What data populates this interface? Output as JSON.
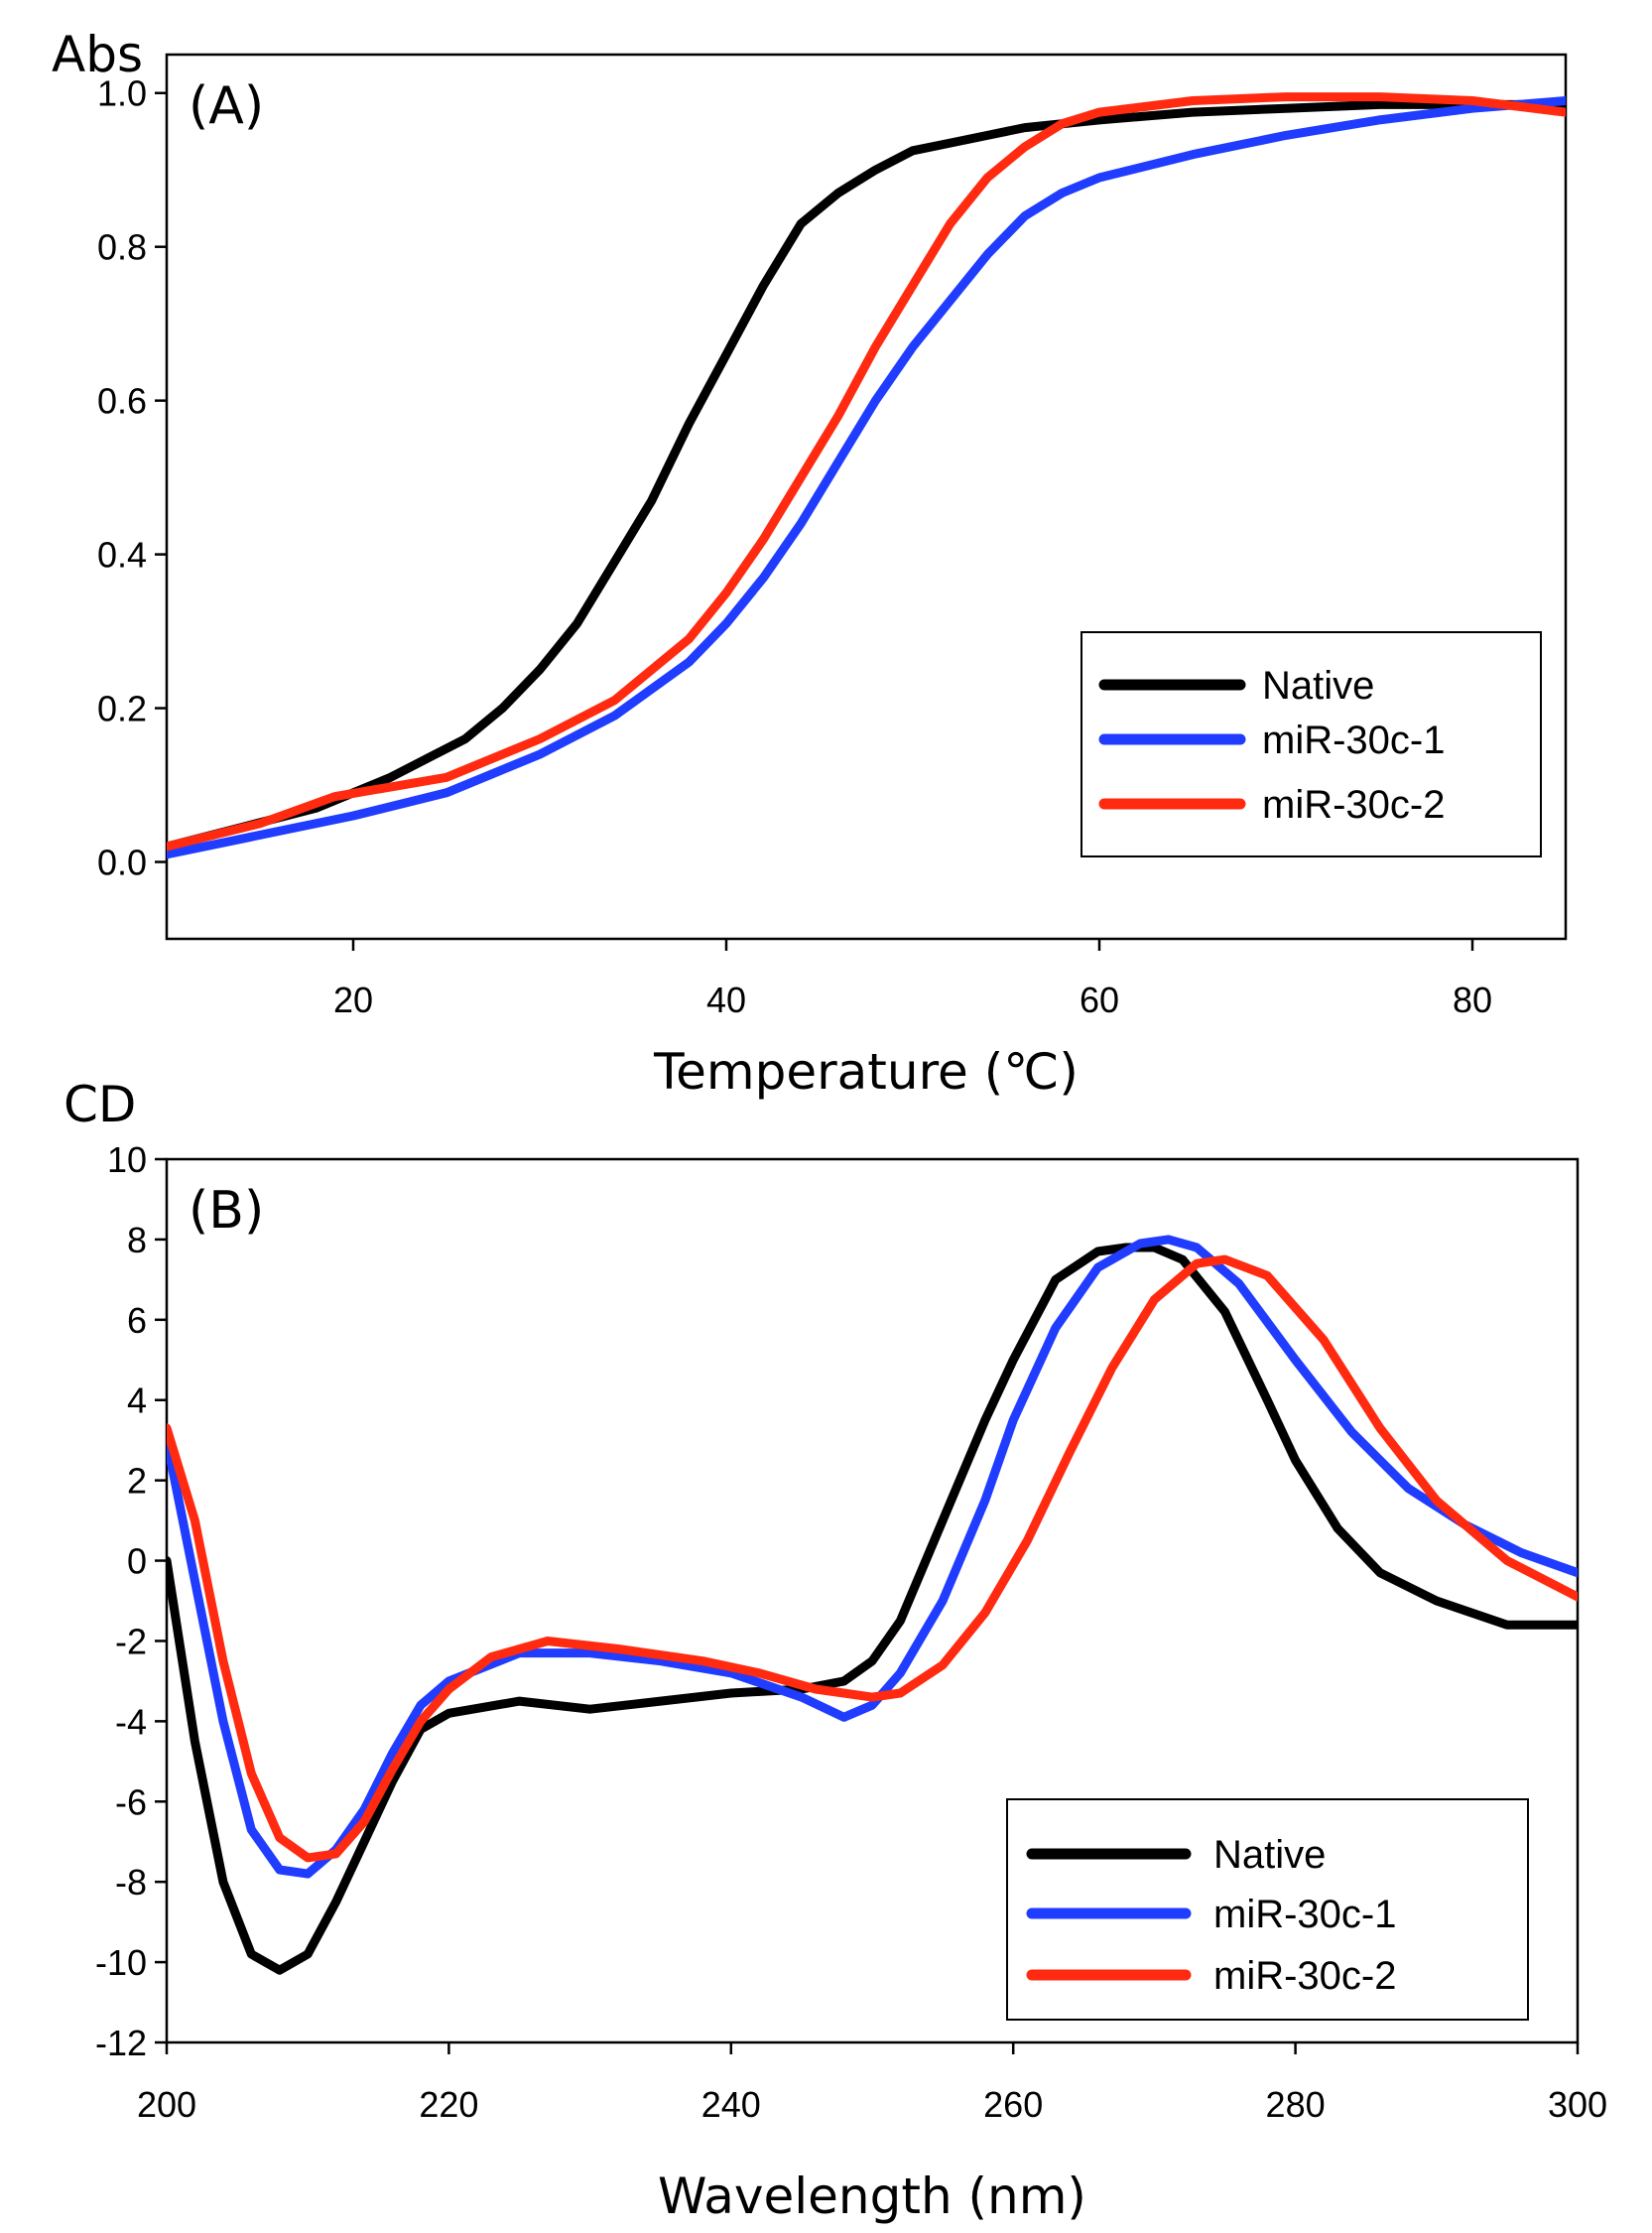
{
  "chart_data": [
    {
      "type": "line",
      "panel_label": "(A)",
      "xlabel": "Temperature (℃)",
      "ylabel": "Abs",
      "xlim": [
        10,
        85
      ],
      "ylim": [
        -0.1,
        1.05
      ],
      "xticks": [
        20,
        40,
        60,
        80
      ],
      "xtick_labels": [
        "20",
        "40",
        "60",
        "80"
      ],
      "yticks": [
        0.0,
        0.2,
        0.4,
        0.6,
        0.8,
        1.0
      ],
      "ytick_labels": [
        "0.0",
        "0.2",
        "0.4",
        "0.6",
        "0.8",
        "1.0"
      ],
      "grid": false,
      "legend_position": "bottom-right",
      "series": [
        {
          "name": "Native",
          "color": "#000000",
          "x": [
            10,
            14,
            18,
            20,
            22,
            24,
            26,
            28,
            30,
            32,
            34,
            36,
            38,
            40,
            42,
            44,
            46,
            48,
            50,
            52,
            54,
            56,
            60,
            65,
            70,
            75,
            80,
            85
          ],
          "y": [
            0.02,
            0.045,
            0.07,
            0.09,
            0.11,
            0.135,
            0.16,
            0.2,
            0.25,
            0.31,
            0.39,
            0.47,
            0.57,
            0.66,
            0.75,
            0.83,
            0.87,
            0.9,
            0.925,
            0.935,
            0.945,
            0.955,
            0.965,
            0.975,
            0.98,
            0.985,
            0.985,
            0.985
          ]
        },
        {
          "name": "miR-30c-1",
          "color": "#1f3cff",
          "x": [
            10,
            15,
            20,
            25,
            30,
            34,
            38,
            40,
            42,
            44,
            46,
            48,
            50,
            52,
            54,
            56,
            58,
            60,
            65,
            70,
            75,
            80,
            85
          ],
          "y": [
            0.01,
            0.035,
            0.06,
            0.09,
            0.14,
            0.19,
            0.26,
            0.31,
            0.37,
            0.44,
            0.52,
            0.6,
            0.67,
            0.73,
            0.79,
            0.84,
            0.87,
            0.89,
            0.92,
            0.945,
            0.965,
            0.98,
            0.99
          ]
        },
        {
          "name": "miR-30c-2",
          "color": "#ff2a10",
          "x": [
            10,
            15,
            19,
            25,
            30,
            34,
            38,
            40,
            42,
            44,
            46,
            48,
            50,
            52,
            54,
            56,
            58,
            60,
            65,
            70,
            75,
            80,
            85
          ],
          "y": [
            0.02,
            0.05,
            0.085,
            0.11,
            0.16,
            0.21,
            0.29,
            0.35,
            0.42,
            0.5,
            0.58,
            0.67,
            0.75,
            0.83,
            0.89,
            0.93,
            0.96,
            0.975,
            0.99,
            0.995,
            0.995,
            0.99,
            0.975
          ]
        }
      ]
    },
    {
      "type": "line",
      "panel_label": "(B)",
      "xlabel": "Wavelength (nm)",
      "ylabel": "CD",
      "xlim": [
        200,
        300
      ],
      "ylim": [
        -12,
        10
      ],
      "xticks": [
        200,
        220,
        240,
        260,
        280,
        300
      ],
      "xtick_labels": [
        "200",
        "220",
        "240",
        "260",
        "280",
        "300"
      ],
      "yticks": [
        -12,
        -10,
        -8,
        -6,
        -4,
        -2,
        0,
        2,
        4,
        6,
        8,
        10
      ],
      "ytick_labels": [
        "-12",
        "-10",
        "-8",
        "-6",
        "-4",
        "-2",
        "0",
        "2",
        "4",
        "6",
        "8",
        "10"
      ],
      "grid": false,
      "legend_position": "bottom-right",
      "series": [
        {
          "name": "Native",
          "color": "#000000",
          "x": [
            200,
            202,
            204,
            206,
            208,
            210,
            212,
            214,
            216,
            218,
            220,
            225,
            230,
            235,
            240,
            245,
            248,
            250,
            252,
            255,
            258,
            260,
            263,
            266,
            268,
            270,
            272,
            275,
            278,
            280,
            283,
            286,
            290,
            295,
            300
          ],
          "y": [
            0,
            -4.5,
            -8,
            -9.8,
            -10.2,
            -9.8,
            -8.5,
            -7,
            -5.5,
            -4.2,
            -3.8,
            -3.5,
            -3.7,
            -3.5,
            -3.3,
            -3.2,
            -3.0,
            -2.5,
            -1.5,
            1,
            3.5,
            5,
            7,
            7.7,
            7.8,
            7.8,
            7.5,
            6.2,
            4,
            2.5,
            0.8,
            -0.3,
            -1,
            -1.6,
            -1.6
          ]
        },
        {
          "name": "miR-30c-1",
          "color": "#1f3cff",
          "x": [
            200,
            202,
            204,
            206,
            208,
            210,
            212,
            214,
            216,
            218,
            220,
            225,
            230,
            235,
            240,
            245,
            248,
            250,
            252,
            255,
            258,
            260,
            263,
            266,
            269,
            271,
            273,
            276,
            280,
            284,
            288,
            292,
            296,
            300
          ],
          "y": [
            3,
            -0.5,
            -4,
            -6.7,
            -7.7,
            -7.8,
            -7.2,
            -6.2,
            -4.8,
            -3.6,
            -3,
            -2.3,
            -2.3,
            -2.5,
            -2.8,
            -3.4,
            -3.9,
            -3.6,
            -2.8,
            -1,
            1.5,
            3.5,
            5.8,
            7.3,
            7.9,
            8.0,
            7.8,
            6.9,
            5,
            3.2,
            1.8,
            0.9,
            0.2,
            -0.3
          ]
        },
        {
          "name": "miR-30c-2",
          "color": "#ff2a10",
          "x": [
            200,
            202,
            204,
            206,
            208,
            210,
            212,
            214,
            216,
            218,
            220,
            223,
            227,
            232,
            238,
            242,
            246,
            250,
            252,
            255,
            258,
            261,
            264,
            267,
            270,
            273,
            275,
            278,
            282,
            286,
            290,
            295,
            300
          ],
          "y": [
            3.3,
            1,
            -2.5,
            -5.3,
            -6.9,
            -7.4,
            -7.3,
            -6.5,
            -5.2,
            -4,
            -3.2,
            -2.4,
            -2,
            -2.2,
            -2.5,
            -2.8,
            -3.2,
            -3.4,
            -3.3,
            -2.6,
            -1.3,
            0.5,
            2.7,
            4.8,
            6.5,
            7.4,
            7.5,
            7.1,
            5.5,
            3.3,
            1.5,
            0,
            -0.9
          ]
        }
      ]
    }
  ]
}
